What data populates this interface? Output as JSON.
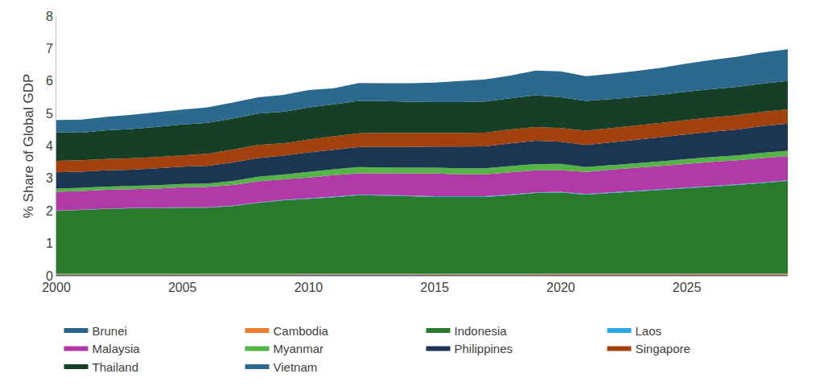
{
  "chart_data": {
    "type": "area",
    "stacked": true,
    "legend": "bottom",
    "grid": false,
    "y_label": "% Share of Global GDP",
    "x": [
      2000,
      2001,
      2002,
      2003,
      2004,
      2005,
      2006,
      2007,
      2008,
      2009,
      2010,
      2011,
      2012,
      2013,
      2014,
      2015,
      2016,
      2017,
      2018,
      2019,
      2020,
      2021,
      2022,
      2023,
      2024,
      2025,
      2026,
      2027,
      2028,
      2029
    ],
    "xlim": [
      2000,
      2029
    ],
    "xticks": [
      2000,
      2005,
      2010,
      2015,
      2020,
      2025
    ],
    "ylim": [
      0,
      8
    ],
    "yticks": [
      0,
      1,
      2,
      3,
      4,
      5,
      6,
      7,
      8
    ],
    "series": [
      {
        "name": "Brunei",
        "color": "#2a6488",
        "values": [
          0.04,
          0.04,
          0.04,
          0.04,
          0.04,
          0.04,
          0.04,
          0.04,
          0.04,
          0.04,
          0.04,
          0.04,
          0.04,
          0.04,
          0.04,
          0.03,
          0.03,
          0.03,
          0.03,
          0.03,
          0.03,
          0.03,
          0.03,
          0.03,
          0.03,
          0.03,
          0.03,
          0.03,
          0.03,
          0.03
        ]
      },
      {
        "name": "Cambodia",
        "color": "#ed7d31",
        "values": [
          0.02,
          0.02,
          0.02,
          0.02,
          0.02,
          0.02,
          0.02,
          0.02,
          0.02,
          0.02,
          0.03,
          0.03,
          0.03,
          0.03,
          0.03,
          0.03,
          0.03,
          0.03,
          0.03,
          0.03,
          0.04,
          0.04,
          0.04,
          0.04,
          0.04,
          0.04,
          0.04,
          0.04,
          0.04,
          0.04
        ]
      },
      {
        "name": "Indonesia",
        "color": "#2a7a2e",
        "values": [
          1.94,
          1.97,
          2.0,
          2.02,
          2.02,
          2.04,
          2.04,
          2.09,
          2.19,
          2.27,
          2.3,
          2.35,
          2.41,
          2.4,
          2.38,
          2.37,
          2.37,
          2.37,
          2.42,
          2.49,
          2.5,
          2.43,
          2.48,
          2.53,
          2.58,
          2.63,
          2.68,
          2.73,
          2.79,
          2.85
        ]
      },
      {
        "name": "Laos",
        "color": "#2aa8e0",
        "values": [
          0.01,
          0.01,
          0.01,
          0.01,
          0.01,
          0.01,
          0.01,
          0.01,
          0.01,
          0.01,
          0.02,
          0.02,
          0.02,
          0.02,
          0.02,
          0.02,
          0.02,
          0.02,
          0.02,
          0.02,
          0.02,
          0.02,
          0.02,
          0.02,
          0.02,
          0.02,
          0.02,
          0.02,
          0.02,
          0.02
        ]
      },
      {
        "name": "Malaysia",
        "color": "#b23aa8",
        "values": [
          0.58,
          0.57,
          0.58,
          0.58,
          0.6,
          0.62,
          0.63,
          0.64,
          0.65,
          0.63,
          0.64,
          0.66,
          0.66,
          0.67,
          0.68,
          0.7,
          0.68,
          0.68,
          0.69,
          0.68,
          0.66,
          0.68,
          0.7,
          0.71,
          0.72,
          0.73,
          0.74,
          0.74,
          0.75,
          0.75
        ]
      },
      {
        "name": "Myanmar",
        "color": "#55b446",
        "values": [
          0.1,
          0.1,
          0.1,
          0.1,
          0.1,
          0.1,
          0.1,
          0.12,
          0.14,
          0.15,
          0.17,
          0.18,
          0.19,
          0.18,
          0.18,
          0.18,
          0.18,
          0.18,
          0.19,
          0.19,
          0.2,
          0.15,
          0.14,
          0.14,
          0.14,
          0.15,
          0.15,
          0.15,
          0.16,
          0.16
        ]
      },
      {
        "name": "Philippines",
        "color": "#1b3652",
        "values": [
          0.5,
          0.5,
          0.5,
          0.5,
          0.52,
          0.53,
          0.55,
          0.57,
          0.58,
          0.58,
          0.6,
          0.6,
          0.62,
          0.63,
          0.64,
          0.65,
          0.67,
          0.68,
          0.7,
          0.72,
          0.68,
          0.68,
          0.7,
          0.72,
          0.74,
          0.76,
          0.78,
          0.8,
          0.82,
          0.84
        ]
      },
      {
        "name": "Singapore",
        "color": "#a3410e",
        "values": [
          0.35,
          0.35,
          0.35,
          0.35,
          0.35,
          0.35,
          0.37,
          0.4,
          0.4,
          0.38,
          0.4,
          0.42,
          0.42,
          0.43,
          0.43,
          0.42,
          0.42,
          0.42,
          0.43,
          0.42,
          0.42,
          0.44,
          0.44,
          0.44,
          0.44,
          0.44,
          0.44,
          0.44,
          0.44,
          0.44
        ]
      },
      {
        "name": "Thailand",
        "color": "#173f26",
        "values": [
          0.88,
          0.85,
          0.88,
          0.9,
          0.93,
          0.95,
          0.95,
          0.95,
          0.97,
          0.97,
          0.98,
          0.98,
          1.0,
          0.98,
          0.96,
          0.95,
          0.95,
          0.96,
          0.96,
          0.98,
          0.95,
          0.92,
          0.89,
          0.88,
          0.87,
          0.87,
          0.87,
          0.87,
          0.87,
          0.87
        ]
      },
      {
        "name": "Vietnam",
        "color": "#2b6a8e",
        "values": [
          0.38,
          0.4,
          0.42,
          0.44,
          0.45,
          0.46,
          0.48,
          0.5,
          0.5,
          0.52,
          0.54,
          0.5,
          0.55,
          0.55,
          0.57,
          0.6,
          0.65,
          0.68,
          0.7,
          0.76,
          0.8,
          0.76,
          0.78,
          0.8,
          0.83,
          0.87,
          0.9,
          0.93,
          0.96,
          0.98
        ]
      }
    ]
  }
}
